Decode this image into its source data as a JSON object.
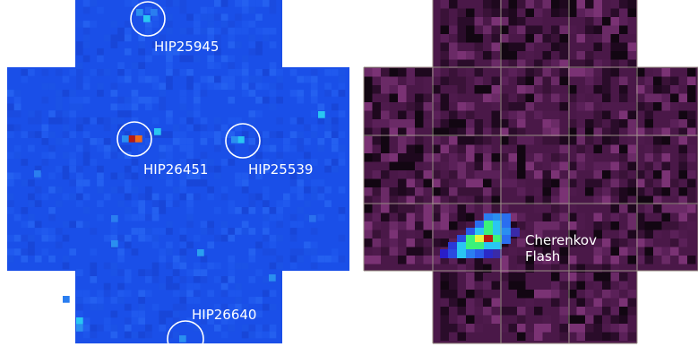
{
  "left_panel": {
    "background_color": "#1a4fe8",
    "star_labels": [
      "HIP25945",
      "HIP26451",
      "HIP25539",
      "HIP26640"
    ]
  },
  "right_panel": {
    "background_color": "#4a1848",
    "grid_line_color": "#9a8f86",
    "annotation_line1": "Cherenkov",
    "annotation_line2": "Flash"
  },
  "colors": {
    "marker_circle": "#ffffff",
    "label_text": "#ffffff",
    "hot_pixel_red": "#b81a10",
    "hot_pixel_orange": "#f06a18",
    "bright_pixel_cyan": "#29c6f2",
    "flash_green": "#3cf27a",
    "flash_yellow": "#e6f53c"
  }
}
